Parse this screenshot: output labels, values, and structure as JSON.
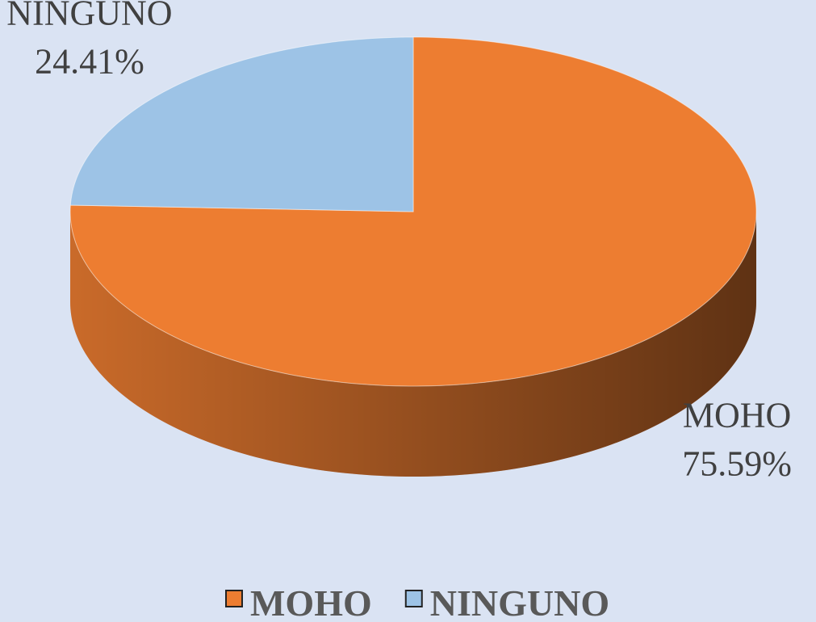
{
  "chart_data": {
    "type": "pie",
    "categories": [
      "MOHO",
      "NINGUNO"
    ],
    "values": [
      75.59,
      24.41
    ],
    "value_labels": [
      "75.59%",
      "24.41%"
    ],
    "colors": [
      "#ed7d31",
      "#9dc3e6"
    ],
    "legend": "bottom"
  }
}
